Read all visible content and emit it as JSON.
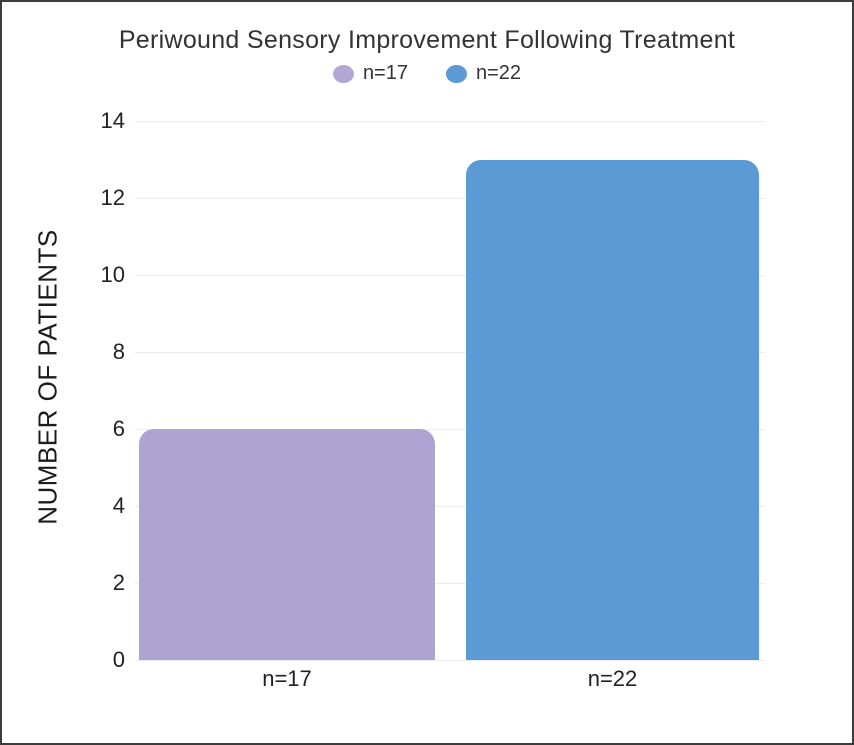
{
  "window": {
    "background": "#ffffff",
    "border_color": "#3c3c3c"
  },
  "chart_data": {
    "type": "bar",
    "title": "Periwound Sensory Improvement Following Treatment",
    "categories": [
      "n=17",
      "n=22"
    ],
    "values": [
      6,
      13
    ],
    "series": [
      {
        "name": "n=17",
        "value": 6,
        "color": "#aea4d2"
      },
      {
        "name": "n=22",
        "value": 13,
        "color": "#5b9ad5"
      }
    ],
    "legend": [
      {
        "label": "n=17",
        "color": "#b2a8d6"
      },
      {
        "label": "n=22",
        "color": "#5b9ad5"
      }
    ],
    "legend_position": "top",
    "xlabel": "",
    "ylabel": "NUMBER OF PATIENTS",
    "ylim": [
      0,
      14
    ],
    "yticks": [
      0,
      2,
      4,
      6,
      8,
      10,
      12,
      14
    ],
    "grid": true,
    "gridline_color": "#ededed",
    "text_color": "#333333"
  }
}
